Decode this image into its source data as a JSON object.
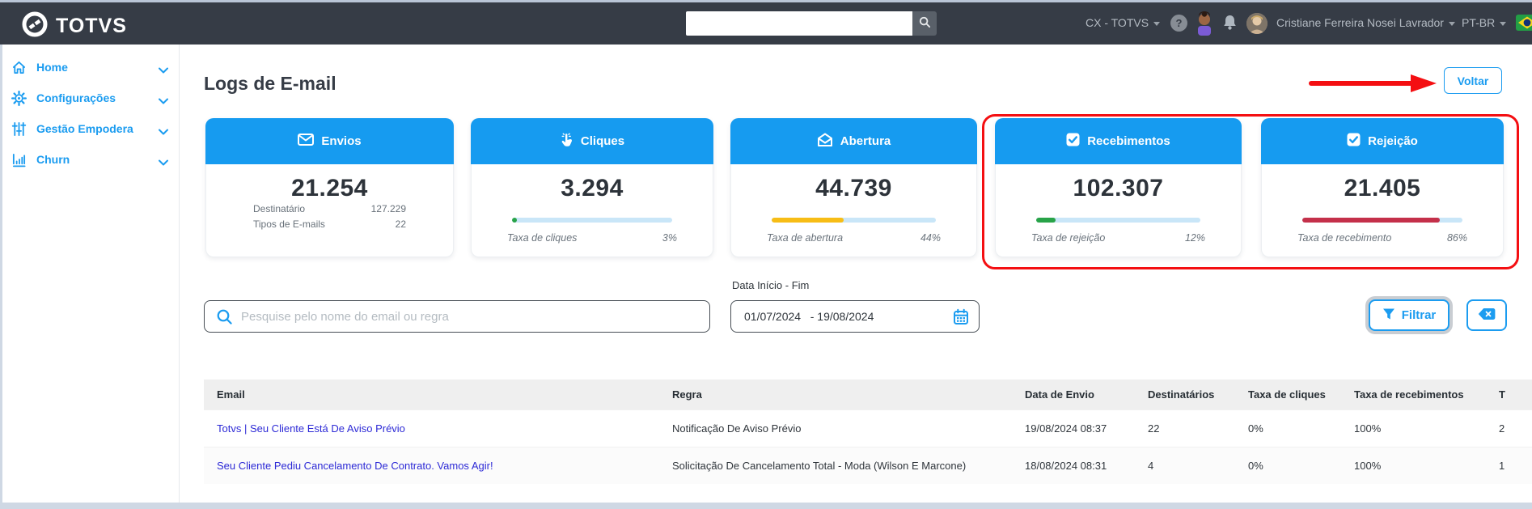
{
  "colors": {
    "accent_blue": "#1b9cf0",
    "header_dark": "#363c46",
    "annotation_red": "#f40f12",
    "progress_track": "#c9e6f8",
    "link_blue": "#2d2ad6"
  },
  "topbar": {
    "brand": "TOTVS",
    "search_value": "",
    "workspace": "CX - TOTVS",
    "user_name": "Cristiane Ferreira Nosei Lavrador",
    "locale": "PT-BR",
    "icons": [
      "search-icon",
      "help-icon",
      "assistant-avatar-icon",
      "bell-icon",
      "user-avatar",
      "brazil-flag-icon"
    ]
  },
  "sidebar": {
    "items": [
      {
        "label": "Home",
        "icon": "home-icon"
      },
      {
        "label": "Configurações",
        "icon": "gear-icon"
      },
      {
        "label": "Gestão Empodera",
        "icon": "sliders-icon"
      },
      {
        "label": "Churn",
        "icon": "bar-chart-icon"
      }
    ]
  },
  "page": {
    "title": "Logs de E-mail",
    "back_button": "Voltar"
  },
  "cards": [
    {
      "title": "Envios",
      "icon": "envelope-icon",
      "value": "21.254",
      "details": [
        {
          "label": "Destinatário",
          "value": "127.229"
        },
        {
          "label": "Tipos de E-mails",
          "value": "22"
        }
      ]
    },
    {
      "title": "Cliques",
      "icon": "click-icon",
      "value": "3.294",
      "progress": {
        "pct": 3,
        "color": "#28a348"
      },
      "footer": {
        "label": "Taxa de cliques",
        "value": "3%"
      }
    },
    {
      "title": "Abertura",
      "icon": "open-mail-icon",
      "value": "44.739",
      "progress": {
        "pct": 44,
        "color": "#f7bd16"
      },
      "footer": {
        "label": "Taxa de abertura",
        "value": "44%"
      }
    },
    {
      "title": "Recebimentos",
      "icon": "checkbox-checked-icon",
      "value": "102.307",
      "progress": {
        "pct": 12,
        "color": "#28a348"
      },
      "footer": {
        "label": "Taxa de rejeição",
        "value": "12%"
      }
    },
    {
      "title": "Rejeição",
      "icon": "checkbox-checked-icon",
      "value": "21.405",
      "progress": {
        "pct": 86,
        "color": "#c4304a"
      },
      "footer": {
        "label": "Taxa de recebimento",
        "value": "86%"
      }
    }
  ],
  "filters": {
    "search_placeholder": "Pesquise pelo nome do email ou regra",
    "date_label": "Data Início - Fim",
    "date_value": "01/07/2024   - 19/08/2024",
    "filter_button": "Filtrar"
  },
  "table": {
    "columns": [
      "Email",
      "Regra",
      "Data de Envio",
      "Destinatários",
      "Taxa de cliques",
      "Taxa de recebimentos",
      "T"
    ],
    "rows": [
      {
        "email": "Totvs | Seu Cliente Está De Aviso Prévio",
        "regra": "Notificação De Aviso Prévio",
        "data_envio": "19/08/2024 08:37",
        "destinatarios": "22",
        "taxa_cliques": "0%",
        "taxa_recebimentos": "100%",
        "t": "2"
      },
      {
        "email": "Seu Cliente Pediu Cancelamento De Contrato. Vamos Agir!",
        "regra": "Solicitação De Cancelamento Total - Moda (Wilson E Marcone)",
        "data_envio": "18/08/2024 08:31",
        "destinatarios": "4",
        "taxa_cliques": "0%",
        "taxa_recebimentos": "100%",
        "t": "1"
      }
    ]
  }
}
